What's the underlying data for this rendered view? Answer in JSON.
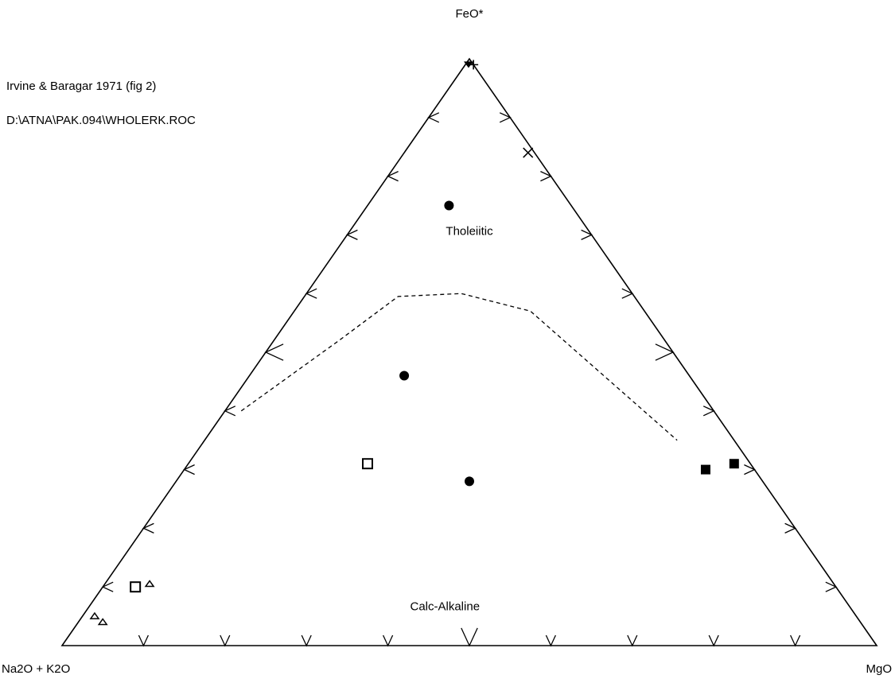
{
  "header": {
    "line1": "Irvine & Baragar 1971 (fig 2)",
    "line2": "D:\\ATNA\\PAK.094\\WHOLERK.ROC"
  },
  "chart_data": {
    "type": "ternary-scatter",
    "title": "Irvine & Baragar 1971 (fig 2)",
    "subtitle": "D:\\ATNA\\PAK.094\\WHOLERK.ROC",
    "apex_labels": {
      "top": "FeO*",
      "left": "Na2O + K2O",
      "right": "MgO"
    },
    "grid": false,
    "tick_step": 10,
    "field_labels": [
      {
        "text": "Tholeiitic",
        "feo": 70,
        "alk": 15,
        "mgo": 15
      },
      {
        "text": "Calc-Alkaline",
        "feo": 6,
        "alk": 50,
        "mgo": 44
      }
    ],
    "boundary": {
      "style": "dashed",
      "points": [
        {
          "alk": 58,
          "feo": 40,
          "mgo": 2
        },
        {
          "alk": 40,
          "feo": 52,
          "mgo": 8
        },
        {
          "alk": 29,
          "feo": 59.5,
          "mgo": 11.5
        },
        {
          "alk": 21,
          "feo": 60,
          "mgo": 19
        },
        {
          "alk": 14,
          "feo": 57,
          "mgo": 29
        },
        {
          "alk": 7,
          "feo": 35,
          "mgo": 58
        }
      ]
    },
    "points": [
      {
        "marker": "tri-down-filled",
        "feo": 99,
        "alk": 0.6,
        "mgo": 0.4
      },
      {
        "marker": "plus",
        "feo": 99,
        "alk": 0,
        "mgo": 1
      },
      {
        "marker": "cross",
        "feo": 84,
        "alk": 0.8,
        "mgo": 15.2
      },
      {
        "marker": "circle-filled",
        "feo": 75,
        "alk": 15,
        "mgo": 10
      },
      {
        "marker": "circle-filled",
        "feo": 46,
        "alk": 35,
        "mgo": 19
      },
      {
        "marker": "circle-filled",
        "feo": 28,
        "alk": 36,
        "mgo": 36
      },
      {
        "marker": "square-open",
        "feo": 31,
        "alk": 47,
        "mgo": 22
      },
      {
        "marker": "square-filled",
        "feo": 30,
        "alk": 6,
        "mgo": 64
      },
      {
        "marker": "square-filled",
        "feo": 31,
        "alk": 2,
        "mgo": 67
      },
      {
        "marker": "square-open",
        "feo": 10,
        "alk": 86,
        "mgo": 4
      },
      {
        "marker": "tri-up-open",
        "feo": 10.5,
        "alk": 84,
        "mgo": 5.5
      },
      {
        "marker": "tri-up-open",
        "feo": 5,
        "alk": 93.5,
        "mgo": 1.5
      },
      {
        "marker": "tri-up-open",
        "feo": 4,
        "alk": 93,
        "mgo": 3
      }
    ]
  }
}
